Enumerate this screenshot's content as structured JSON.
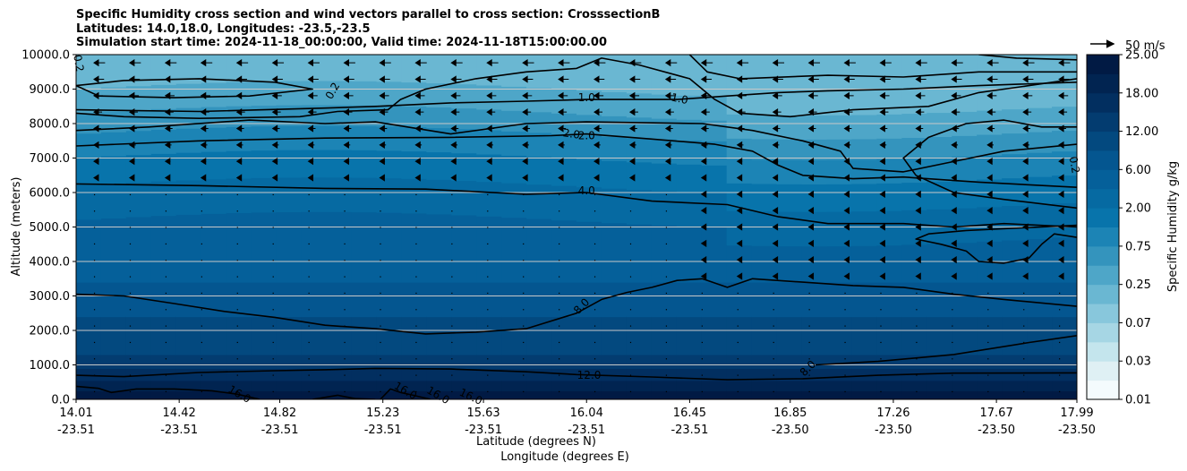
{
  "title_lines": [
    "Specific Humidity cross section and wind vectors parallel to cross section: CrosssectionB",
    "Latitudes: 14.0,18.0, Longitudes: -23.5,-23.5",
    "Simulation start time: 2024-11-18_00:00:00, Valid time: 2024-11-18T15:00:00.00"
  ],
  "colors": {
    "level_fills": [
      "#f4fbfd",
      "#dff0f4",
      "#c4e5ed",
      "#a6d6e4",
      "#88c7dc",
      "#6ab7d2",
      "#4ea6c8",
      "#3494bd",
      "#1c84b5",
      "#0874ab",
      "#066aa2",
      "#05609a",
      "#045690",
      "#03497f",
      "#033c70",
      "#022f60",
      "#012451",
      "#011a44"
    ],
    "contour_line": "#000000",
    "gridline": "#c8c8c8",
    "arrow": "#000000"
  },
  "chart_data": {
    "type": "heatmap",
    "subtype": "filled contour cross-section with wind vectors and black contour lines",
    "xlabel": "Latitude (degrees N)",
    "xlabel2": "Longitude (degrees E)",
    "ylabel": "Altitude (meters)",
    "ylim": [
      0,
      10000
    ],
    "yticks": [
      0,
      1000,
      2000,
      3000,
      4000,
      5000,
      6000,
      7000,
      8000,
      9000,
      10000
    ],
    "ytick_labels": [
      "0.0",
      "1000.0",
      "2000.0",
      "3000.0",
      "4000.0",
      "5000.0",
      "6000.0",
      "7000.0",
      "8000.0",
      "9000.0",
      "10000.0"
    ],
    "xlim": [
      14.01,
      17.99
    ],
    "xticks": [
      {
        "lat": "14.01",
        "lon": "-23.51"
      },
      {
        "lat": "14.42",
        "lon": "-23.51"
      },
      {
        "lat": "14.82",
        "lon": "-23.51"
      },
      {
        "lat": "15.23",
        "lon": "-23.51"
      },
      {
        "lat": "15.63",
        "lon": "-23.51"
      },
      {
        "lat": "16.04",
        "lon": "-23.51"
      },
      {
        "lat": "16.45",
        "lon": "-23.51"
      },
      {
        "lat": "16.85",
        "lon": "-23.50"
      },
      {
        "lat": "17.26",
        "lon": "-23.50"
      },
      {
        "lat": "17.67",
        "lon": "-23.50"
      },
      {
        "lat": "17.99",
        "lon": "-23.50"
      }
    ],
    "grid": "horizontal",
    "colorbar": {
      "label": "Specific Humidity g/kg",
      "levels": [
        0.01,
        0.02,
        0.03,
        0.05,
        0.07,
        0.1,
        0.25,
        0.5,
        0.75,
        1.0,
        2.0,
        4.0,
        6.0,
        9.0,
        12.0,
        15.0,
        18.0,
        21.0,
        25.0
      ],
      "tick_labels": [
        "0.01",
        "0.03",
        "0.07",
        "0.25",
        "0.75",
        "2.00",
        "6.00",
        "12.00",
        "18.00",
        "25.00"
      ],
      "tick_values": [
        0.01,
        0.03,
        0.07,
        0.25,
        0.75,
        2.0,
        6.0,
        12.0,
        18.0,
        25.0
      ]
    },
    "quiver_key": {
      "label": "50 m/s",
      "value": 50
    },
    "contour_labels": [
      {
        "text": "0.2",
        "lat": 14.02,
        "alt": 9750,
        "rot": 80
      },
      {
        "text": "0.2",
        "lat": 15.03,
        "alt": 8950,
        "rot": -60
      },
      {
        "text": "1.0",
        "lat": 16.04,
        "alt": 8750,
        "rot": 0
      },
      {
        "text": "1.0",
        "lat": 16.41,
        "alt": 8720,
        "rot": 12
      },
      {
        "text": "2.0",
        "lat": 15.98,
        "alt": 7700,
        "rot": 8
      },
      {
        "text": "2.0",
        "lat": 16.04,
        "alt": 7650,
        "rot": 0
      },
      {
        "text": "0.2",
        "lat": 17.98,
        "alt": 6800,
        "rot": 80
      },
      {
        "text": "4.0",
        "lat": 16.04,
        "alt": 6050,
        "rot": 0
      },
      {
        "text": "8.0",
        "lat": 16.02,
        "alt": 2700,
        "rot": -45
      },
      {
        "text": "8.0",
        "lat": 16.92,
        "alt": 900,
        "rot": -45
      },
      {
        "text": "12.0",
        "lat": 16.05,
        "alt": 700,
        "rot": 0
      },
      {
        "text": "16.0",
        "lat": 14.66,
        "alt": 150,
        "rot": 30
      },
      {
        "text": "16.0",
        "lat": 15.32,
        "alt": 250,
        "rot": 30
      },
      {
        "text": "16.0",
        "lat": 15.45,
        "alt": 120,
        "rot": 30
      },
      {
        "text": "16.0",
        "lat": 15.58,
        "alt": 80,
        "rot": 25
      }
    ],
    "contours": [
      {
        "level": "16.0",
        "points": [
          [
            14.01,
            380
          ],
          [
            14.1,
            320
          ],
          [
            14.15,
            200
          ],
          [
            14.25,
            300
          ],
          [
            14.4,
            300
          ],
          [
            14.55,
            250
          ],
          [
            14.65,
            150
          ],
          [
            14.74,
            0
          ]
        ]
      },
      {
        "level": "16.0",
        "points": [
          [
            14.95,
            0
          ],
          [
            15.05,
            120
          ],
          [
            15.12,
            20
          ],
          [
            15.2,
            0
          ]
        ]
      },
      {
        "level": "16.0",
        "points": [
          [
            15.22,
            0
          ],
          [
            15.26,
            300
          ],
          [
            15.3,
            200
          ],
          [
            15.35,
            120
          ],
          [
            15.42,
            0
          ]
        ]
      },
      {
        "level": "12.0",
        "points": [
          [
            14.01,
            700
          ],
          [
            14.2,
            660
          ],
          [
            14.5,
            780
          ],
          [
            14.8,
            830
          ],
          [
            15.0,
            860
          ],
          [
            15.2,
            900
          ],
          [
            15.5,
            880
          ],
          [
            15.8,
            800
          ],
          [
            16.0,
            720
          ],
          [
            16.3,
            650
          ],
          [
            16.6,
            570
          ],
          [
            16.9,
            600
          ],
          [
            17.2,
            700
          ],
          [
            17.5,
            760
          ],
          [
            17.99,
            770
          ]
        ]
      },
      {
        "level": "8.0",
        "points": [
          [
            14.01,
            3050
          ],
          [
            14.2,
            3000
          ],
          [
            14.4,
            2780
          ],
          [
            14.6,
            2550
          ],
          [
            14.8,
            2380
          ],
          [
            15.0,
            2150
          ],
          [
            15.2,
            2050
          ],
          [
            15.4,
            1900
          ],
          [
            15.6,
            1950
          ],
          [
            15.8,
            2050
          ],
          [
            16.0,
            2500
          ],
          [
            16.1,
            2900
          ],
          [
            16.2,
            3100
          ],
          [
            16.3,
            3250
          ],
          [
            16.4,
            3450
          ],
          [
            16.5,
            3500
          ],
          [
            16.6,
            3250
          ],
          [
            16.7,
            3500
          ],
          [
            16.9,
            3400
          ],
          [
            17.1,
            3300
          ],
          [
            17.3,
            3250
          ],
          [
            17.5,
            3050
          ],
          [
            17.7,
            2900
          ],
          [
            17.99,
            2700
          ]
        ]
      },
      {
        "level": "8.0",
        "points": [
          [
            16.95,
            1000
          ],
          [
            17.2,
            1100
          ],
          [
            17.5,
            1300
          ],
          [
            17.8,
            1650
          ],
          [
            17.99,
            1850
          ]
        ]
      },
      {
        "level": "4.0",
        "points": [
          [
            14.01,
            6250
          ],
          [
            14.5,
            6200
          ],
          [
            15.0,
            6120
          ],
          [
            15.4,
            6100
          ],
          [
            15.8,
            5950
          ],
          [
            16.04,
            6000
          ],
          [
            16.3,
            5750
          ],
          [
            16.6,
            5650
          ],
          [
            16.8,
            5300
          ],
          [
            17.0,
            5100
          ],
          [
            17.3,
            5100
          ],
          [
            17.5,
            5000
          ],
          [
            17.7,
            5100
          ],
          [
            17.99,
            5000
          ]
        ]
      },
      {
        "level": "4.0",
        "points": [
          [
            17.99,
            4700
          ],
          [
            17.9,
            4800
          ],
          [
            17.85,
            4500
          ],
          [
            17.8,
            4100
          ],
          [
            17.7,
            3950
          ],
          [
            17.6,
            4000
          ],
          [
            17.55,
            4300
          ],
          [
            17.45,
            4500
          ],
          [
            17.35,
            4650
          ],
          [
            17.4,
            4800
          ],
          [
            17.55,
            4900
          ],
          [
            17.99,
            5050
          ]
        ]
      },
      {
        "level": "2.0",
        "points": [
          [
            14.01,
            7350
          ],
          [
            14.5,
            7500
          ],
          [
            15.0,
            7580
          ],
          [
            15.5,
            7600
          ],
          [
            15.9,
            7650
          ],
          [
            16.04,
            7700
          ],
          [
            16.3,
            7550
          ],
          [
            16.55,
            7400
          ],
          [
            16.7,
            7200
          ],
          [
            16.8,
            6800
          ],
          [
            16.9,
            6500
          ],
          [
            17.1,
            6400
          ],
          [
            17.3,
            6450
          ],
          [
            17.6,
            6300
          ],
          [
            17.99,
            6150
          ]
        ]
      },
      {
        "level": "2.0",
        "points": [
          [
            17.99,
            5550
          ],
          [
            17.7,
            5800
          ],
          [
            17.5,
            6000
          ],
          [
            17.35,
            6500
          ],
          [
            17.3,
            7000
          ],
          [
            17.4,
            7600
          ],
          [
            17.55,
            8000
          ],
          [
            17.7,
            8100
          ],
          [
            17.85,
            7900
          ],
          [
            17.99,
            7900
          ]
        ]
      },
      {
        "level": "1.0",
        "points": [
          [
            14.01,
            7800
          ],
          [
            14.3,
            7900
          ],
          [
            14.7,
            8100
          ],
          [
            15.0,
            8000
          ],
          [
            15.2,
            8050
          ],
          [
            15.5,
            7700
          ],
          [
            15.8,
            8000
          ],
          [
            16.04,
            8050
          ],
          [
            16.5,
            8000
          ],
          [
            16.7,
            7800
          ],
          [
            16.9,
            7500
          ],
          [
            17.05,
            7200
          ],
          [
            17.1,
            6700
          ],
          [
            17.3,
            6600
          ],
          [
            17.5,
            6900
          ],
          [
            17.7,
            7200
          ],
          [
            17.99,
            7400
          ]
        ]
      },
      {
        "level": "1.0",
        "points": [
          [
            14.01,
            8400
          ],
          [
            14.5,
            8350
          ],
          [
            15.0,
            8450
          ],
          [
            15.2,
            8500
          ],
          [
            15.5,
            8600
          ],
          [
            15.8,
            8650
          ],
          [
            16.04,
            8700
          ],
          [
            16.4,
            8700
          ],
          [
            16.6,
            8800
          ],
          [
            16.8,
            8900
          ],
          [
            17.0,
            8950
          ],
          [
            17.3,
            9000
          ],
          [
            17.6,
            9100
          ],
          [
            17.99,
            9200
          ]
        ]
      },
      {
        "level": "0.2",
        "points": [
          [
            14.01,
            8300
          ],
          [
            14.2,
            8200
          ],
          [
            14.5,
            8150
          ],
          [
            14.9,
            8200
          ],
          [
            15.05,
            8350
          ],
          [
            15.25,
            8400
          ],
          [
            15.3,
            8700
          ],
          [
            15.4,
            9000
          ],
          [
            15.6,
            9300
          ],
          [
            15.8,
            9500
          ],
          [
            16.0,
            9600
          ],
          [
            16.1,
            9900
          ],
          [
            16.25,
            9700
          ],
          [
            16.45,
            9300
          ],
          [
            16.55,
            8700
          ],
          [
            16.65,
            8300
          ],
          [
            16.85,
            8200
          ],
          [
            17.1,
            8400
          ],
          [
            17.4,
            8500
          ],
          [
            17.6,
            8900
          ],
          [
            17.8,
            9100
          ],
          [
            17.99,
            9300
          ]
        ]
      },
      {
        "level": "0.2",
        "points": [
          [
            14.01,
            9100
          ],
          [
            14.2,
            9250
          ],
          [
            14.5,
            9300
          ],
          [
            14.8,
            9200
          ],
          [
            14.95,
            9000
          ],
          [
            14.7,
            8800
          ],
          [
            14.4,
            8750
          ],
          [
            14.1,
            8800
          ],
          [
            14.01,
            9100
          ]
        ]
      },
      {
        "level": "0.2",
        "points": [
          [
            16.45,
            10000
          ],
          [
            16.52,
            9500
          ],
          [
            16.65,
            9300
          ],
          [
            17.0,
            9400
          ],
          [
            17.3,
            9350
          ],
          [
            17.6,
            9500
          ],
          [
            17.99,
            9500
          ]
        ]
      },
      {
        "level": "1.0",
        "points": [
          [
            17.6,
            10000
          ],
          [
            17.75,
            9900
          ],
          [
            17.99,
            9850
          ]
        ]
      }
    ]
  }
}
